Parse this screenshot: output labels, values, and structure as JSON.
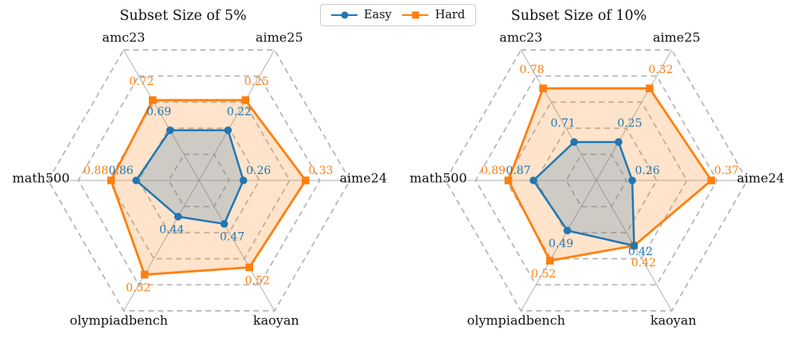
{
  "legend": {
    "items": [
      {
        "label": "Easy",
        "color": "#1f77b4",
        "marker": "circle"
      },
      {
        "label": "Hard",
        "color": "#ff7f0e",
        "marker": "square"
      }
    ]
  },
  "colors": {
    "easy": "#1f77b4",
    "hard": "#ff7f0e",
    "grid_ring": "#b5b5b5",
    "axis_spoke": "#aab2ba",
    "text": "#111111"
  },
  "chart_data": [
    {
      "type": "radar",
      "title": "Subset Size of 5%",
      "categories": [
        "amc23",
        "aime25",
        "aime24",
        "kaoyan",
        "olympiadbench",
        "math500"
      ],
      "series": [
        {
          "name": "Easy",
          "values": [
            0.69,
            0.22,
            0.26,
            0.47,
            0.44,
            0.86
          ]
        },
        {
          "name": "Hard",
          "values": [
            0.72,
            0.25,
            0.33,
            0.52,
            0.52,
            0.88
          ]
        }
      ],
      "radial_axis": {
        "rings": [
          0.2,
          0.4,
          0.6,
          0.8,
          1.0
        ],
        "grid": "dashed hexagons",
        "normalization": "per-axis: f = 0.5 + (value - mean) / (range + 0.1)"
      },
      "legend_position": "top-center-shared"
    },
    {
      "type": "radar",
      "title": "Subset Size of 10%",
      "categories": [
        "amc23",
        "aime25",
        "aime24",
        "kaoyan",
        "olympiadbench",
        "math500"
      ],
      "series": [
        {
          "name": "Easy",
          "values": [
            0.71,
            0.25,
            0.26,
            0.42,
            0.49,
            0.87
          ]
        },
        {
          "name": "Hard",
          "values": [
            0.78,
            0.32,
            0.37,
            0.42,
            0.52,
            0.89
          ]
        }
      ],
      "radial_axis": {
        "rings": [
          0.2,
          0.4,
          0.6,
          0.8,
          1.0
        ],
        "grid": "dashed hexagons",
        "normalization": "per-axis: f = 0.5 + (value - mean) / (range + 0.1)"
      },
      "legend_position": "top-center-shared"
    }
  ]
}
